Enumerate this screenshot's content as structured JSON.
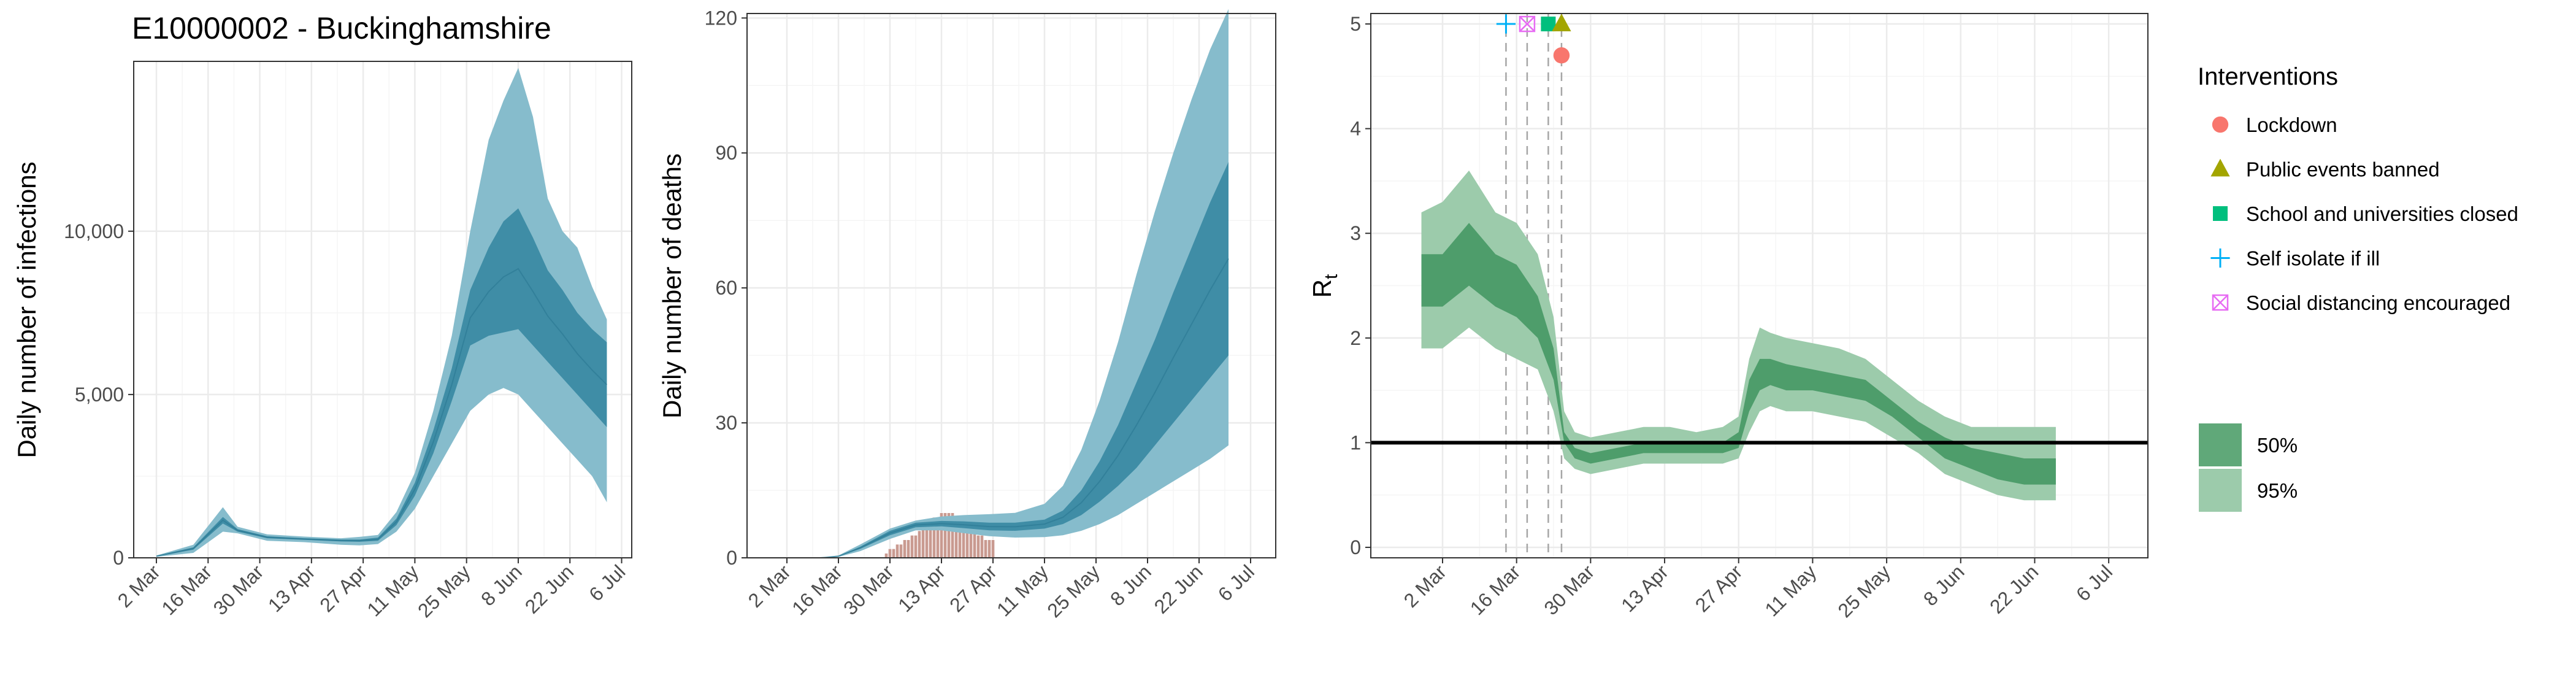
{
  "chart_data": [
    {
      "type": "area",
      "title": "E10000002 - Buckinghamshire",
      "xlabel": "",
      "ylabel": "Daily number of infections",
      "ylim": [
        0,
        15200
      ],
      "y_ticks": [
        0,
        5000,
        10000
      ],
      "y_tick_labels": [
        "0",
        "5,000",
        "10,000"
      ],
      "x_tick_labels": [
        "2 Mar",
        "16 Mar",
        "30 Mar",
        "13 Apr",
        "27 Apr",
        "11 May",
        "25 May",
        "8 Jun",
        "22 Jun",
        "6 Jul"
      ],
      "x_days": [
        0,
        10,
        18,
        22,
        30,
        40,
        50,
        55,
        60,
        65,
        70,
        75,
        80,
        85,
        90,
        94,
        98,
        102,
        106,
        110,
        114,
        118,
        122
      ],
      "series": [
        {
          "name": "95%",
          "low": [
            30,
            150,
            800,
            750,
            520,
            480,
            400,
            380,
            420,
            800,
            1500,
            2500,
            3500,
            4500,
            5000,
            5200,
            5000,
            4500,
            4000,
            3500,
            3000,
            2500,
            1700
          ],
          "high": [
            70,
            400,
            1550,
            950,
            720,
            650,
            600,
            640,
            700,
            1400,
            2600,
            4500,
            6800,
            10000,
            12800,
            14000,
            15000,
            13500,
            11000,
            10000,
            9500,
            8300,
            7300
          ]
        },
        {
          "name": "50%",
          "low": [
            40,
            250,
            1050,
            800,
            600,
            550,
            500,
            490,
            520,
            1000,
            1900,
            3200,
            4800,
            6500,
            6800,
            6900,
            7000,
            6500,
            6000,
            5500,
            5000,
            4500,
            4000
          ],
          "high": [
            60,
            320,
            1250,
            880,
            660,
            600,
            560,
            560,
            620,
            1200,
            2300,
            3900,
            5800,
            8200,
            9500,
            10300,
            10700,
            9800,
            8800,
            8200,
            7500,
            7000,
            6600
          ]
        }
      ]
    },
    {
      "type": "area",
      "title": "",
      "xlabel": "",
      "ylabel": "Daily number of deaths",
      "ylim": [
        0,
        121
      ],
      "y_ticks": [
        0,
        30,
        60,
        90,
        120
      ],
      "y_tick_labels": [
        "0",
        "30",
        "60",
        "90",
        "120"
      ],
      "x_tick_labels": [
        "2 Mar",
        "16 Mar",
        "30 Mar",
        "13 Apr",
        "27 Apr",
        "11 May",
        "25 May",
        "8 Jun",
        "22 Jun",
        "6 Jul"
      ],
      "x_days": [
        9,
        14,
        20,
        28,
        35,
        42,
        48,
        55,
        62,
        70,
        75,
        80,
        85,
        90,
        95,
        100,
        105,
        110,
        115,
        120
      ],
      "series": [
        {
          "name": "95%",
          "low": [
            0,
            0.2,
            1.5,
            4.2,
            6.1,
            6.1,
            5.5,
            4.8,
            4.5,
            4.6,
            5,
            6,
            7.5,
            9.5,
            12,
            14.5,
            17,
            19.5,
            22,
            25
          ],
          "high": [
            0,
            0.5,
            3,
            6.5,
            8.3,
            9.2,
            9.5,
            9.7,
            10,
            12,
            16,
            24,
            35,
            48,
            63,
            77,
            90,
            102,
            113,
            122
          ]
        },
        {
          "name": "50%",
          "low": [
            0,
            0.3,
            2,
            5,
            6.8,
            7,
            6.6,
            6.1,
            6,
            6.5,
            7.5,
            9.5,
            12.5,
            16,
            20,
            25,
            30,
            35,
            40,
            45
          ],
          "high": [
            0,
            0.4,
            2.5,
            6,
            7.8,
            8.2,
            8.1,
            7.8,
            7.8,
            8.5,
            10.5,
            15,
            21.5,
            29.5,
            39,
            48.5,
            59,
            69,
            79,
            88
          ]
        }
      ],
      "observed_deaths": [
        {
          "day": 27,
          "value": 1
        },
        {
          "day": 28,
          "value": 2
        },
        {
          "day": 29,
          "value": 2
        },
        {
          "day": 30,
          "value": 3
        },
        {
          "day": 31,
          "value": 3
        },
        {
          "day": 32,
          "value": 4
        },
        {
          "day": 33,
          "value": 4
        },
        {
          "day": 34,
          "value": 5
        },
        {
          "day": 35,
          "value": 5
        },
        {
          "day": 36,
          "value": 6
        },
        {
          "day": 37,
          "value": 7
        },
        {
          "day": 38,
          "value": 7
        },
        {
          "day": 39,
          "value": 8
        },
        {
          "day": 40,
          "value": 9
        },
        {
          "day": 41,
          "value": 9
        },
        {
          "day": 42,
          "value": 10
        },
        {
          "day": 43,
          "value": 10
        },
        {
          "day": 44,
          "value": 10
        },
        {
          "day": 45,
          "value": 10
        },
        {
          "day": 46,
          "value": 9
        },
        {
          "day": 47,
          "value": 9
        },
        {
          "day": 48,
          "value": 8
        },
        {
          "day": 49,
          "value": 7
        },
        {
          "day": 50,
          "value": 6
        },
        {
          "day": 51,
          "value": 6
        },
        {
          "day": 52,
          "value": 5
        },
        {
          "day": 53,
          "value": 5
        },
        {
          "day": 54,
          "value": 4
        },
        {
          "day": 55,
          "value": 4
        },
        {
          "day": 56,
          "value": 4
        }
      ]
    },
    {
      "type": "area",
      "title": "",
      "xlabel": "",
      "ylabel": "R",
      "ylabel_subscript": "t",
      "ylim": [
        -0.1,
        5.1
      ],
      "y_ticks": [
        0,
        1,
        2,
        3,
        4,
        5
      ],
      "y_tick_labels": [
        "0",
        "1",
        "2",
        "3",
        "4",
        "5"
      ],
      "x_tick_labels": [
        "2 Mar",
        "16 Mar",
        "30 Mar",
        "13 Apr",
        "27 Apr",
        "11 May",
        "25 May",
        "8 Jun",
        "22 Jun",
        "6 Jul"
      ],
      "reference_line": 1,
      "x_days": [
        -4,
        0,
        5,
        10,
        14,
        18,
        21,
        23,
        25,
        28,
        33,
        38,
        43,
        48,
        53,
        56,
        58,
        60,
        62,
        65,
        70,
        75,
        80,
        85,
        90,
        95,
        100,
        105,
        110,
        115,
        116
      ],
      "series": [
        {
          "name": "95%",
          "low": [
            1.9,
            1.9,
            2.1,
            1.9,
            1.8,
            1.7,
            1.3,
            0.85,
            0.75,
            0.7,
            0.75,
            0.8,
            0.8,
            0.8,
            0.8,
            0.85,
            1.1,
            1.3,
            1.35,
            1.3,
            1.3,
            1.25,
            1.2,
            1.05,
            0.9,
            0.7,
            0.6,
            0.5,
            0.45,
            0.45,
            0.45
          ],
          "high": [
            3.2,
            3.3,
            3.6,
            3.2,
            3.1,
            2.8,
            2.2,
            1.3,
            1.1,
            1.05,
            1.1,
            1.15,
            1.15,
            1.1,
            1.15,
            1.25,
            1.8,
            2.1,
            2.05,
            2.0,
            1.95,
            1.9,
            1.8,
            1.6,
            1.4,
            1.25,
            1.15,
            1.15,
            1.15,
            1.15,
            1.15
          ]
        },
        {
          "name": "50%",
          "low": [
            2.3,
            2.3,
            2.5,
            2.3,
            2.2,
            2.0,
            1.6,
            1.0,
            0.85,
            0.8,
            0.85,
            0.9,
            0.9,
            0.9,
            0.9,
            0.95,
            1.3,
            1.5,
            1.55,
            1.5,
            1.5,
            1.45,
            1.4,
            1.25,
            1.05,
            0.85,
            0.75,
            0.65,
            0.6,
            0.6,
            0.6
          ],
          "high": [
            2.8,
            2.8,
            3.1,
            2.8,
            2.7,
            2.4,
            1.9,
            1.1,
            0.95,
            0.9,
            0.95,
            1.0,
            1.0,
            1.0,
            1.0,
            1.1,
            1.6,
            1.8,
            1.8,
            1.75,
            1.7,
            1.65,
            1.6,
            1.4,
            1.2,
            1.05,
            0.95,
            0.9,
            0.85,
            0.85,
            0.85
          ]
        }
      ],
      "interventions": [
        {
          "name": "Self isolate if ill",
          "day": 12,
          "y": 5.0,
          "marker": "plus"
        },
        {
          "name": "Social distancing encouraged",
          "day": 16,
          "y": 5.0,
          "marker": "boxx"
        },
        {
          "name": "School and universities closed",
          "day": 20,
          "y": 5.0,
          "marker": "square"
        },
        {
          "name": "Public events banned",
          "day": 22.5,
          "y": 5.0,
          "marker": "triangle"
        },
        {
          "name": "Lockdown",
          "day": 22.5,
          "y": 4.7,
          "marker": "circle"
        }
      ]
    }
  ],
  "legend": {
    "title": "Interventions",
    "items": [
      {
        "label": "Lockdown",
        "marker": "circle",
        "color": "#F8766D"
      },
      {
        "label": "Public events banned",
        "marker": "triangle",
        "color": "#A3A500"
      },
      {
        "label": "School and universities closed",
        "marker": "square",
        "color": "#00BF7D"
      },
      {
        "label": "Self isolate if ill",
        "marker": "plus",
        "color": "#00B0F6"
      },
      {
        "label": "Social distancing encouraged",
        "marker": "boxx",
        "color": "#E76BF3"
      }
    ],
    "interval_items": [
      {
        "label": "50%",
        "color": "#60a879"
      },
      {
        "label": "95%",
        "color": "#9ccbab"
      }
    ]
  },
  "colors": {
    "blue_95": "#86bccc",
    "blue_50": "#3f8da6",
    "blue_line": "#2a7893",
    "green_95": "#9ccbab",
    "green_50": "#4e9d6b",
    "bar": "#c99a90",
    "grid_major": "#ebebeb",
    "grid_minor": "#f5f5f5",
    "panel_border": "#333333"
  }
}
